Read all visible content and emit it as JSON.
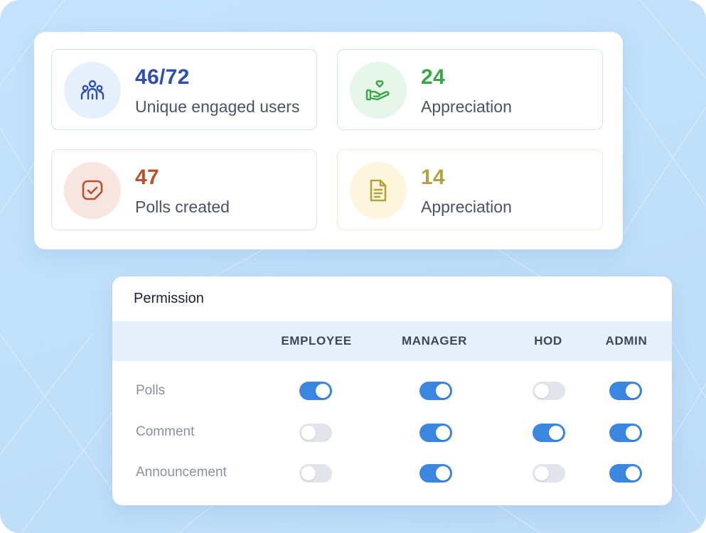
{
  "stats": [
    {
      "value": "46/72",
      "label": "Unique engaged users",
      "icon": "users-icon",
      "color": "#2f4fae"
    },
    {
      "value": "24",
      "label": "Appreciation",
      "icon": "heart-hand-icon",
      "color": "#3aa746"
    },
    {
      "value": "47",
      "label": "Polls created",
      "icon": "checkbox-icon",
      "color": "#b8512d"
    },
    {
      "value": "14",
      "label": "Appreciation",
      "icon": "document-icon",
      "color": "#b5a23f"
    }
  ],
  "permission": {
    "title": "Permission",
    "columns": [
      "EMPLOYEE",
      "MANAGER",
      "HOD",
      "ADMIN"
    ],
    "rows": [
      {
        "label": "Polls",
        "values": [
          true,
          true,
          false,
          true
        ]
      },
      {
        "label": "Comment",
        "values": [
          false,
          true,
          true,
          true
        ]
      },
      {
        "label": "Announcement",
        "values": [
          false,
          true,
          false,
          true
        ]
      }
    ],
    "toggle_on_color": "#3b86e0",
    "toggle_off_color": "#e2e4ec"
  }
}
